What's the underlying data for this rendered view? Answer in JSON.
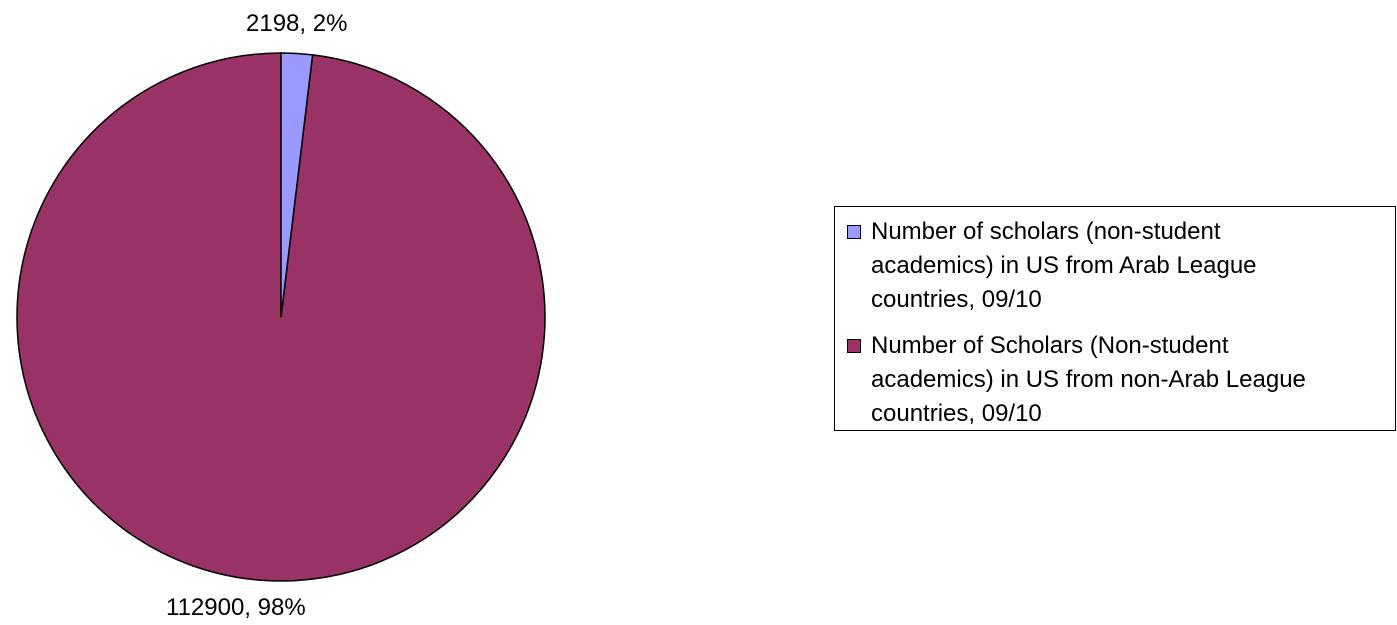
{
  "chart_data": {
    "type": "pie",
    "title": "",
    "series": [
      {
        "name": "Number of scholars (non-student academics) in US from Arab League countries, 09/10",
        "value": 2198,
        "percent": 2,
        "label": "2198, 2%",
        "color": "#9999ff"
      },
      {
        "name": "Number of Scholars (Non-student academics) in US from non-Arab League countries, 09/10",
        "value": 112900,
        "percent": 98,
        "label": "112900, 98%",
        "color": "#993366"
      }
    ],
    "legend": {
      "position": "right",
      "lines": [
        [
          "Number of scholars (non-student",
          "academics) in US from Arab League",
          "countries, 09/10"
        ],
        [
          "Number of Scholars (Non-student",
          "academics) in US from non-Arab League",
          "countries, 09/10"
        ]
      ]
    }
  }
}
